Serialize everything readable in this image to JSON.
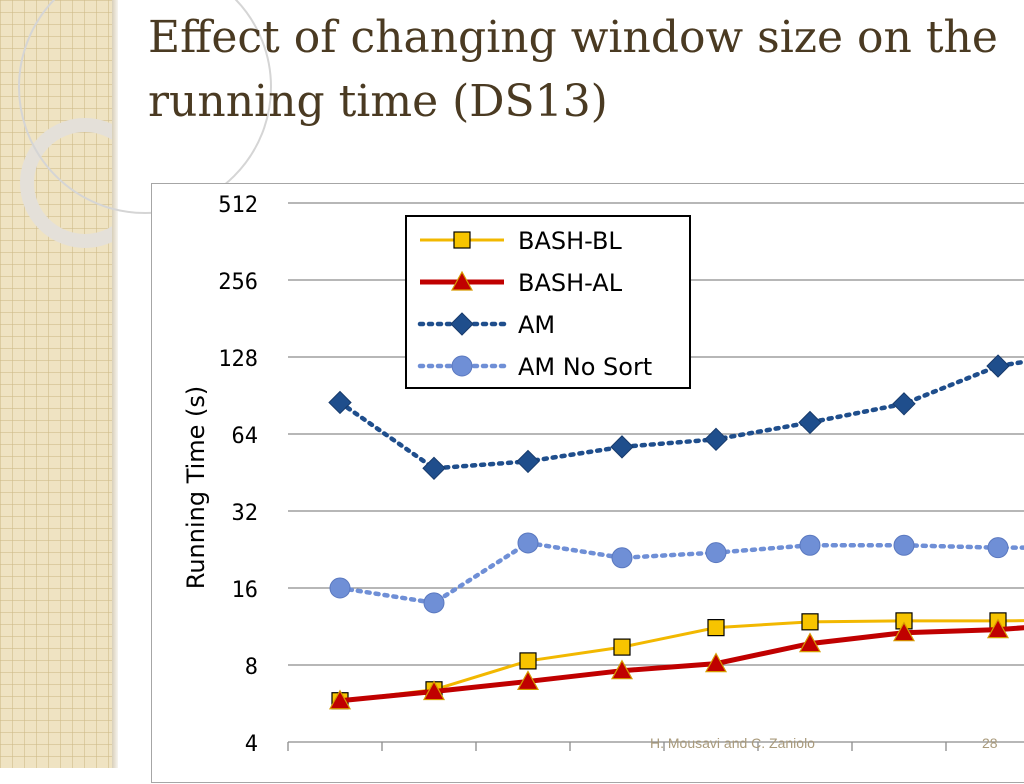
{
  "slide": {
    "title": "Effect of changing window size on the running time (DS13)",
    "footer": "H. Mousavi and C. Zaniolo",
    "page_number": "28"
  },
  "chart_data": {
    "type": "line",
    "title": "",
    "xlabel": "",
    "ylabel": "Running Time (s)",
    "y_scale": "log2",
    "ylim": [
      4,
      512
    ],
    "yticks": [
      4,
      8,
      16,
      32,
      64,
      128,
      256,
      512
    ],
    "ytick_labels": [
      "4",
      "8",
      "16",
      "32",
      "64",
      "128",
      "256",
      "512"
    ],
    "x": [
      1,
      2,
      3,
      4,
      5,
      6,
      7,
      8,
      9
    ],
    "x_tick_labels": [],
    "grid": true,
    "legend_position": "top-left",
    "series": [
      {
        "name": "BASH-BL",
        "color": "#f2b800",
        "marker": "square",
        "line": "solid",
        "values": [
          5.8,
          6.4,
          8.3,
          9.4,
          11.2,
          11.8,
          11.9,
          11.9,
          12.0
        ]
      },
      {
        "name": "BASH-AL",
        "color": "#c00000",
        "marker": "triangle",
        "line": "solid",
        "values": [
          5.8,
          6.3,
          6.9,
          7.6,
          8.1,
          9.7,
          10.7,
          11.0,
          11.7
        ]
      },
      {
        "name": "AM",
        "color": "#1f4e8c",
        "marker": "diamond",
        "line": "dotted",
        "values": [
          85,
          47,
          50,
          57,
          61,
          71,
          84,
          118,
          135
        ]
      },
      {
        "name": "AM No Sort",
        "color": "#6f8fd6",
        "marker": "circle",
        "line": "dotted",
        "values": [
          16,
          14,
          24,
          21,
          22,
          23.5,
          23.5,
          23,
          23
        ]
      }
    ]
  }
}
